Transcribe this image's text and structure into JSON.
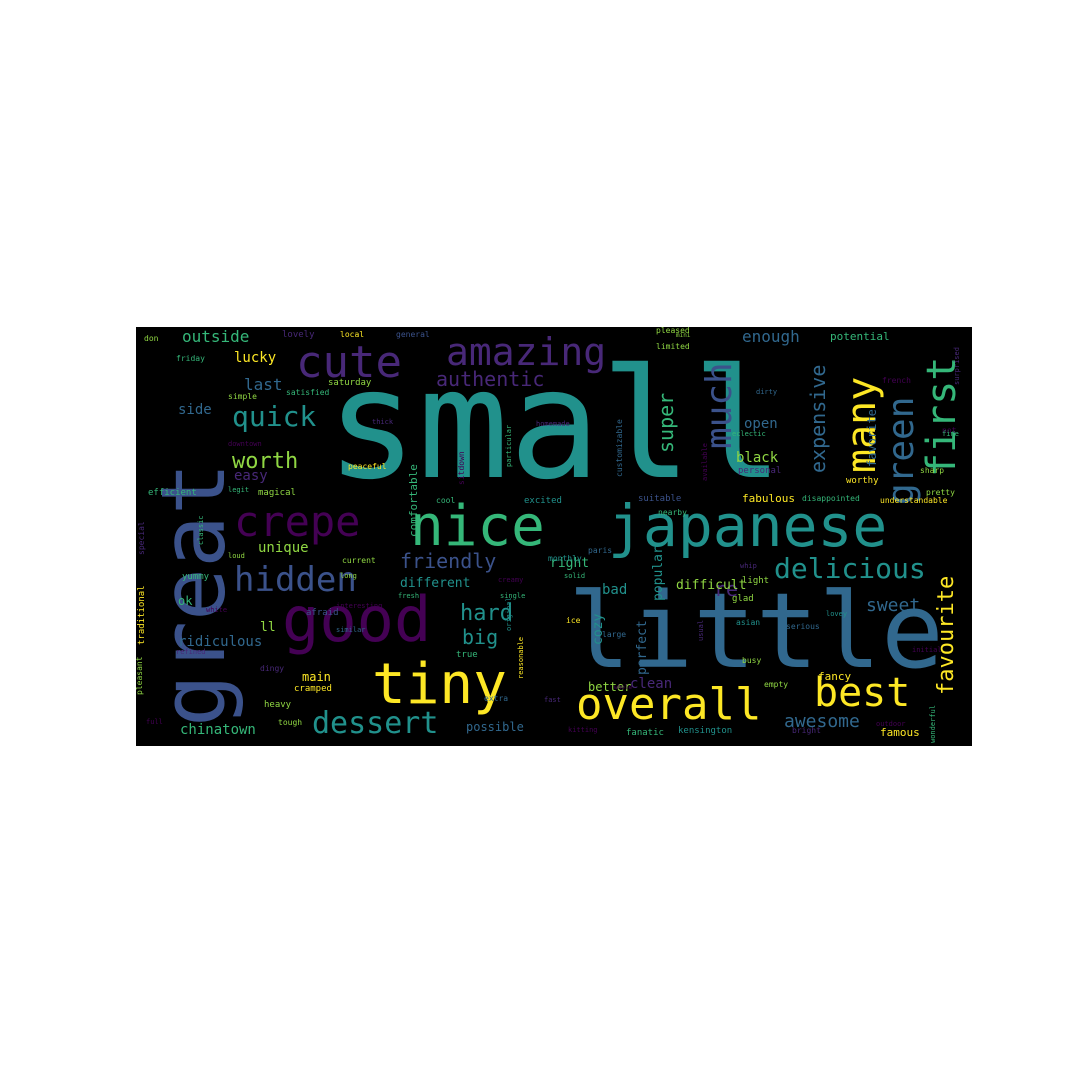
{
  "palette": {
    "page_bg": "#ffffff",
    "cloud_bg": "#000000",
    "word_colors": [
      "#440154",
      "#482878",
      "#3b528b",
      "#31688e",
      "#21918c",
      "#35b779",
      "#90d743",
      "#fde725"
    ]
  },
  "words": [
    {
      "text": "small"
    },
    {
      "text": "great"
    },
    {
      "text": "little"
    },
    {
      "text": "japanese"
    },
    {
      "text": "nice"
    },
    {
      "text": "good"
    },
    {
      "text": "crepe"
    },
    {
      "text": "cute"
    },
    {
      "text": "amazing"
    },
    {
      "text": "tiny"
    },
    {
      "text": "overall"
    },
    {
      "text": "hidden"
    },
    {
      "text": "best"
    },
    {
      "text": "dessert"
    },
    {
      "text": "many"
    },
    {
      "text": "first"
    },
    {
      "text": "green"
    },
    {
      "text": "much"
    },
    {
      "text": "delicious"
    },
    {
      "text": "authentic"
    },
    {
      "text": "quick"
    },
    {
      "text": "worth"
    },
    {
      "text": "favourite"
    },
    {
      "text": "expensive"
    },
    {
      "text": "friendly"
    },
    {
      "text": "hard"
    },
    {
      "text": "big"
    },
    {
      "text": "super"
    },
    {
      "text": "awesome"
    },
    {
      "text": "sweet"
    },
    {
      "text": "re"
    },
    {
      "text": "outside"
    },
    {
      "text": "enough"
    },
    {
      "text": "lucky"
    },
    {
      "text": "last"
    },
    {
      "text": "side"
    },
    {
      "text": "easy"
    },
    {
      "text": "unique"
    },
    {
      "text": "ridiculous"
    },
    {
      "text": "chinatown"
    },
    {
      "text": "different"
    },
    {
      "text": "difficult"
    },
    {
      "text": "open"
    },
    {
      "text": "black"
    },
    {
      "text": "popular"
    },
    {
      "text": "perfect"
    },
    {
      "text": "cozy"
    },
    {
      "text": "clean"
    },
    {
      "text": "possible"
    },
    {
      "text": "better"
    },
    {
      "text": "ll"
    },
    {
      "text": "bad"
    },
    {
      "text": "right"
    },
    {
      "text": "main"
    },
    {
      "text": "ok"
    },
    {
      "text": "potential"
    },
    {
      "text": "favorite"
    },
    {
      "text": "comfortable"
    },
    {
      "text": "fancy"
    },
    {
      "text": "fabulous"
    },
    {
      "text": "famous"
    },
    {
      "text": "fanatic"
    },
    {
      "text": "kensington"
    },
    {
      "text": "traditional"
    },
    {
      "text": "cramped"
    },
    {
      "text": "heavy"
    },
    {
      "text": "yummy"
    },
    {
      "text": "saturday"
    },
    {
      "text": "lovely"
    },
    {
      "text": "local"
    },
    {
      "text": "general"
    },
    {
      "text": "pleased"
    },
    {
      "text": "limited"
    },
    {
      "text": "satisfied"
    },
    {
      "text": "friday"
    },
    {
      "text": "don"
    },
    {
      "text": "simple"
    },
    {
      "text": "efficient"
    },
    {
      "text": "magical"
    },
    {
      "text": "legit"
    },
    {
      "text": "classic"
    },
    {
      "text": "special"
    },
    {
      "text": "peaceful"
    },
    {
      "text": "excited"
    },
    {
      "text": "cool"
    },
    {
      "text": "particular"
    },
    {
      "text": "customizable"
    },
    {
      "text": "homemade"
    },
    {
      "text": "sitdown"
    },
    {
      "text": "thick"
    },
    {
      "text": "downtown"
    },
    {
      "text": "current"
    },
    {
      "text": "loud"
    },
    {
      "text": "long"
    },
    {
      "text": "afraid"
    },
    {
      "text": "interesting"
    },
    {
      "text": "white"
    },
    {
      "text": "fresh"
    },
    {
      "text": "solid"
    },
    {
      "text": "creamy"
    },
    {
      "text": "monthly"
    },
    {
      "text": "paris"
    },
    {
      "text": "suitable"
    },
    {
      "text": "nearby"
    },
    {
      "text": "personal"
    },
    {
      "text": "worthy"
    },
    {
      "text": "disappointed"
    },
    {
      "text": "understandable"
    },
    {
      "text": "pretty"
    },
    {
      "text": "sharp"
    },
    {
      "text": "not"
    },
    {
      "text": "fine"
    },
    {
      "text": "french"
    },
    {
      "text": "outdoor"
    },
    {
      "text": "surprised"
    },
    {
      "text": "glad"
    },
    {
      "text": "light"
    },
    {
      "text": "whip"
    },
    {
      "text": "eclectic"
    },
    {
      "text": "dirty"
    },
    {
      "text": "serious"
    },
    {
      "text": "busy"
    },
    {
      "text": "large"
    },
    {
      "text": "ice"
    },
    {
      "text": "true"
    },
    {
      "text": "similar"
    },
    {
      "text": "refined"
    },
    {
      "text": "dingy"
    },
    {
      "text": "pleasant"
    },
    {
      "text": "full"
    },
    {
      "text": "reasonable"
    },
    {
      "text": "extra"
    },
    {
      "text": "tough"
    },
    {
      "text": "empty"
    },
    {
      "text": "bright"
    },
    {
      "text": "asian"
    },
    {
      "text": "usual"
    },
    {
      "text": "original"
    },
    {
      "text": "available"
    },
    {
      "text": "wonderful"
    },
    {
      "text": "initial"
    },
    {
      "text": "kitting"
    },
    {
      "text": "fast"
    },
    {
      "text": "single"
    },
    {
      "text": "whole"
    },
    {
      "text": "mini"
    },
    {
      "text": "lovey"
    }
  ]
}
